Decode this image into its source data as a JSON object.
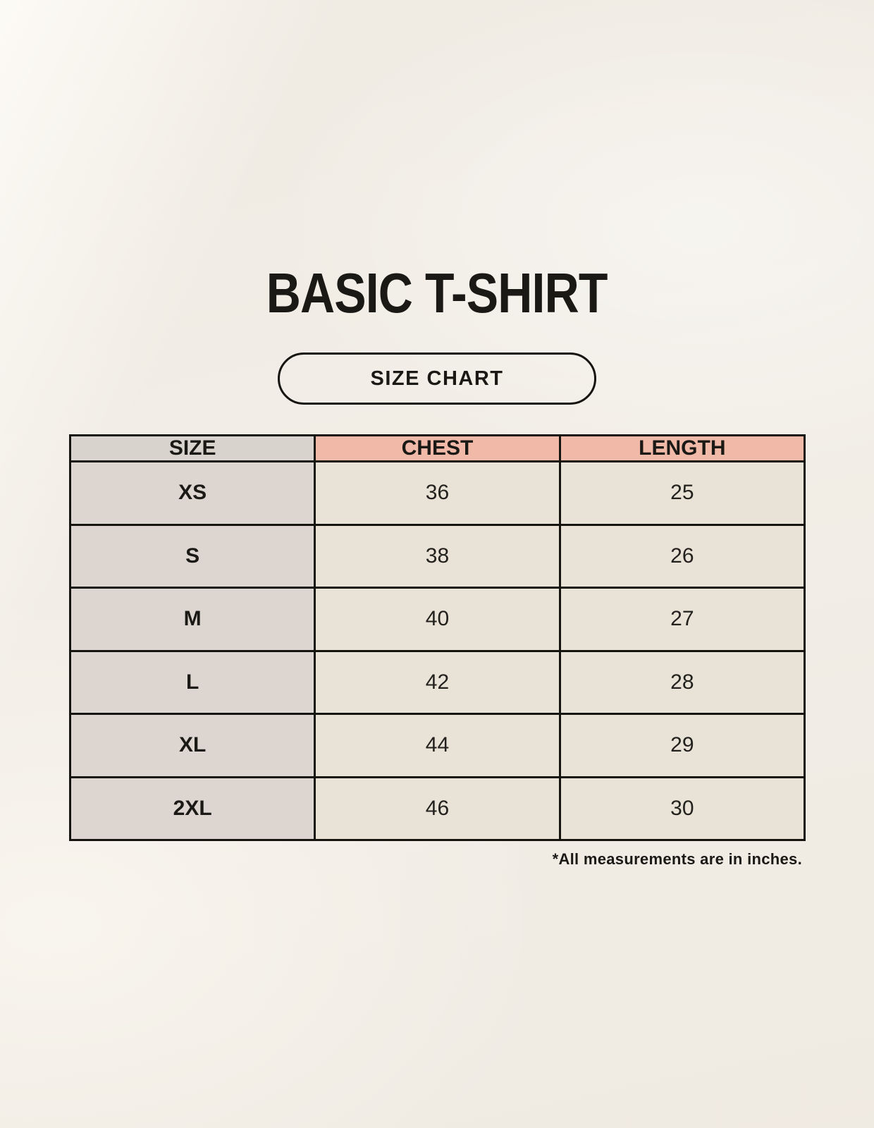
{
  "header": {
    "title": "BASIC T-SHIRT",
    "size_chart_button_label": "SIZE CHART"
  },
  "table_note": "*All measurements are in inches.",
  "chart_data": {
    "type": "table",
    "title": "BASIC T-SHIRT",
    "columns": [
      "SIZE",
      "CHEST",
      "LENGTH"
    ],
    "rows": [
      [
        "XS",
        "36",
        "25"
      ],
      [
        "S",
        "38",
        "26"
      ],
      [
        "M",
        "40",
        "27"
      ],
      [
        "L",
        "42",
        "28"
      ],
      [
        "XL",
        "44",
        "29"
      ],
      [
        "2XL",
        "46",
        "30"
      ]
    ],
    "note": "*All measurements are in inches.",
    "units": "inches",
    "layout": {
      "header_row": true,
      "columns_equal_width": true,
      "grid": "on"
    }
  },
  "colors": {
    "background": "#f2eee7",
    "header_size_bg": "#d9d3cd",
    "header_measure_bg": "#f0b9a8",
    "row_label_bg": "#ddd6d0",
    "data_cell_bg": "#e9e2d7",
    "border": "#16140f",
    "text": "#1b1915"
  }
}
